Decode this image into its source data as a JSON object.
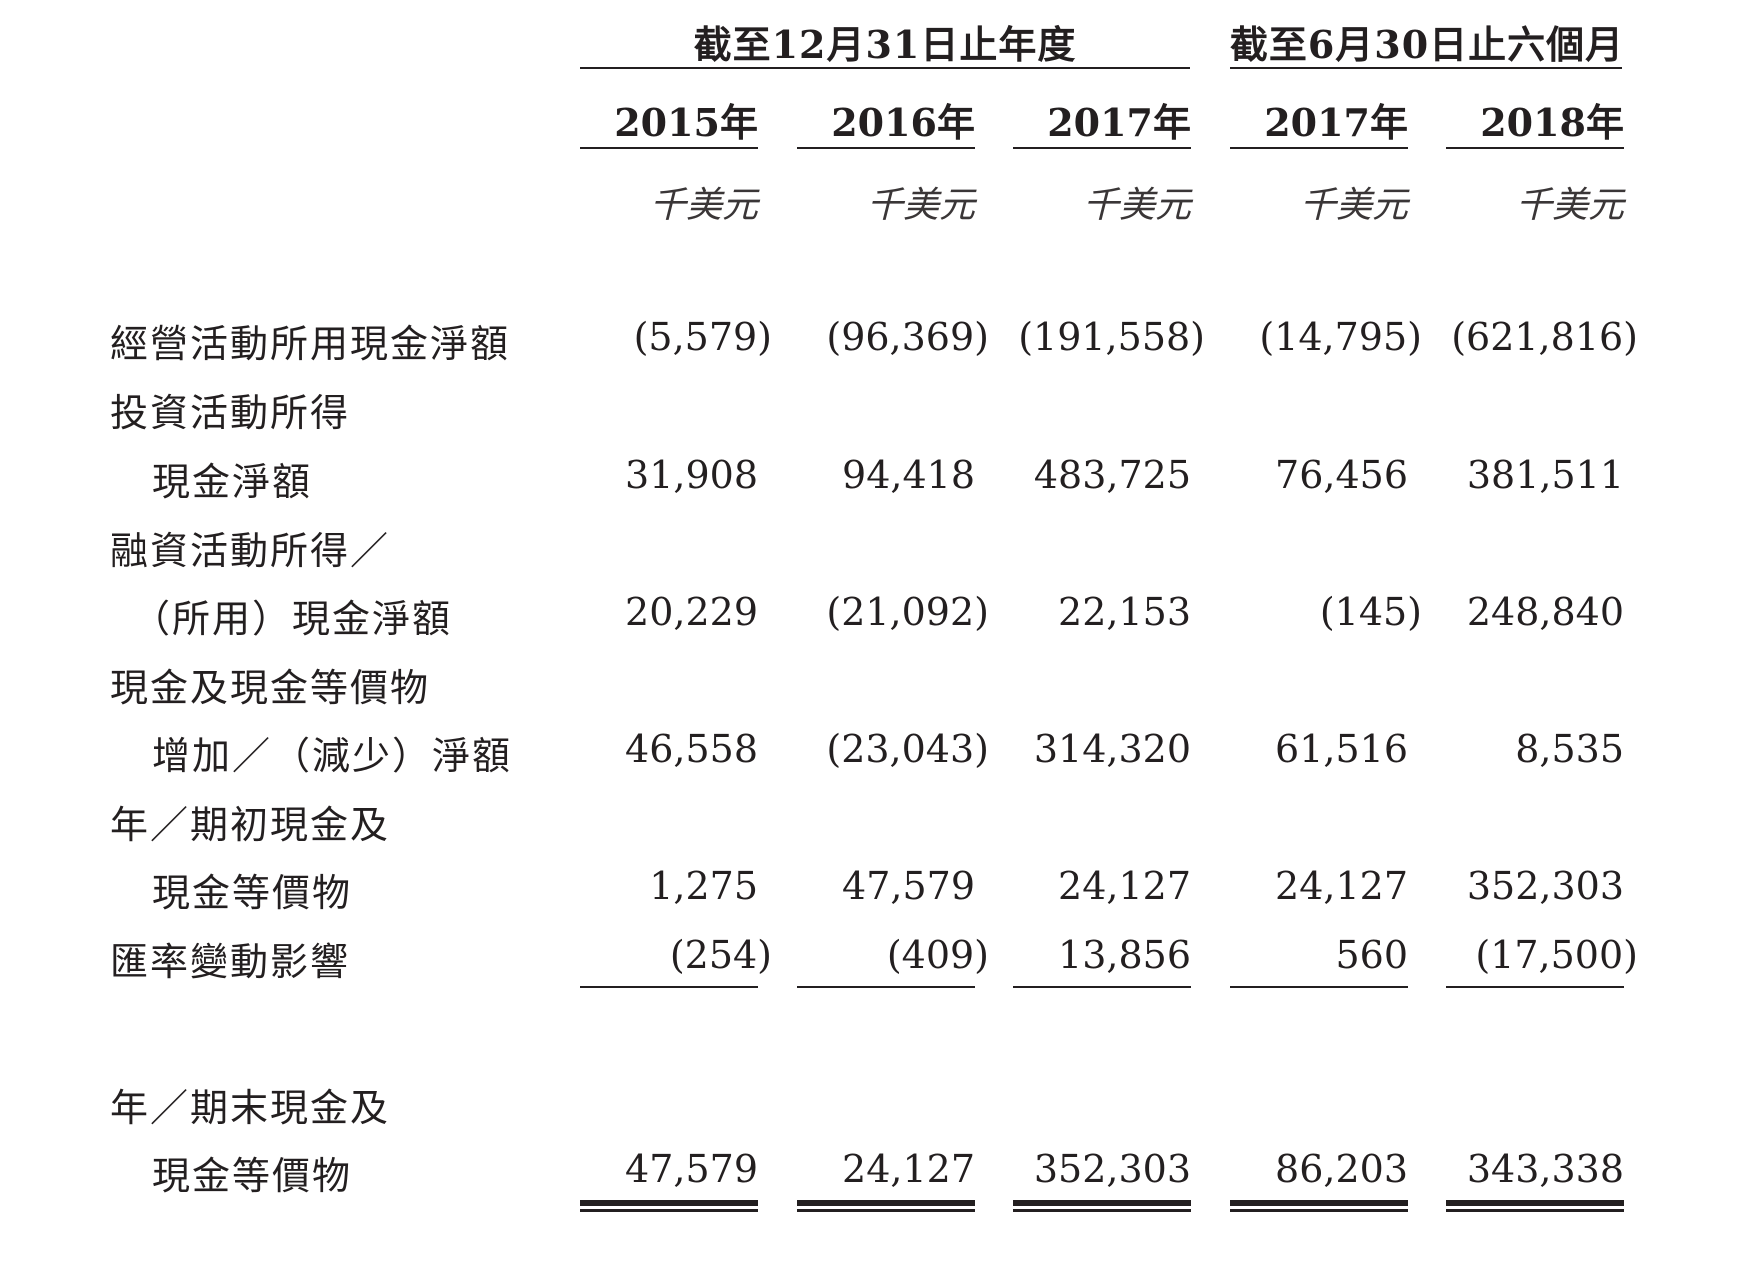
{
  "header": {
    "group_annual": "截至12月31日止年度",
    "group_interim": "截至6月30日止六個月",
    "years": [
      "2015年",
      "2016年",
      "2017年",
      "2017年",
      "2018年"
    ],
    "units": [
      "千美元",
      "千美元",
      "千美元",
      "千美元",
      "千美元"
    ]
  },
  "rows": [
    {
      "label": [
        "經營活動所用現金淨額"
      ],
      "values": [
        "(5,579)",
        "(96,369)",
        "(191,558)",
        "(14,795)",
        "(621,816)"
      ]
    },
    {
      "label": [
        "投資活動所得",
        "現金淨額"
      ],
      "values": [
        "31,908",
        "94,418",
        "483,725",
        "76,456",
        "381,511"
      ]
    },
    {
      "label": [
        "融資活動所得／",
        "（所用）現金淨額"
      ],
      "values": [
        "20,229",
        "(21,092)",
        "22,153",
        "(145)",
        "248,840"
      ]
    },
    {
      "label": [
        "現金及現金等價物",
        "增加／（減少）淨額"
      ],
      "values": [
        "46,558",
        "(23,043)",
        "314,320",
        "61,516",
        "8,535"
      ]
    },
    {
      "label": [
        "年／期初現金及",
        "現金等價物"
      ],
      "values": [
        "1,275",
        "47,579",
        "24,127",
        "24,127",
        "352,303"
      ]
    },
    {
      "label": [
        "匯率變動影響"
      ],
      "values": [
        "(254)",
        "(409)",
        "13,856",
        "560",
        "(17,500)"
      ]
    },
    {
      "label": [
        "年／期末現金及",
        "現金等價物"
      ],
      "values": [
        "47,579",
        "24,127",
        "352,303",
        "86,203",
        "343,338"
      ]
    }
  ]
}
